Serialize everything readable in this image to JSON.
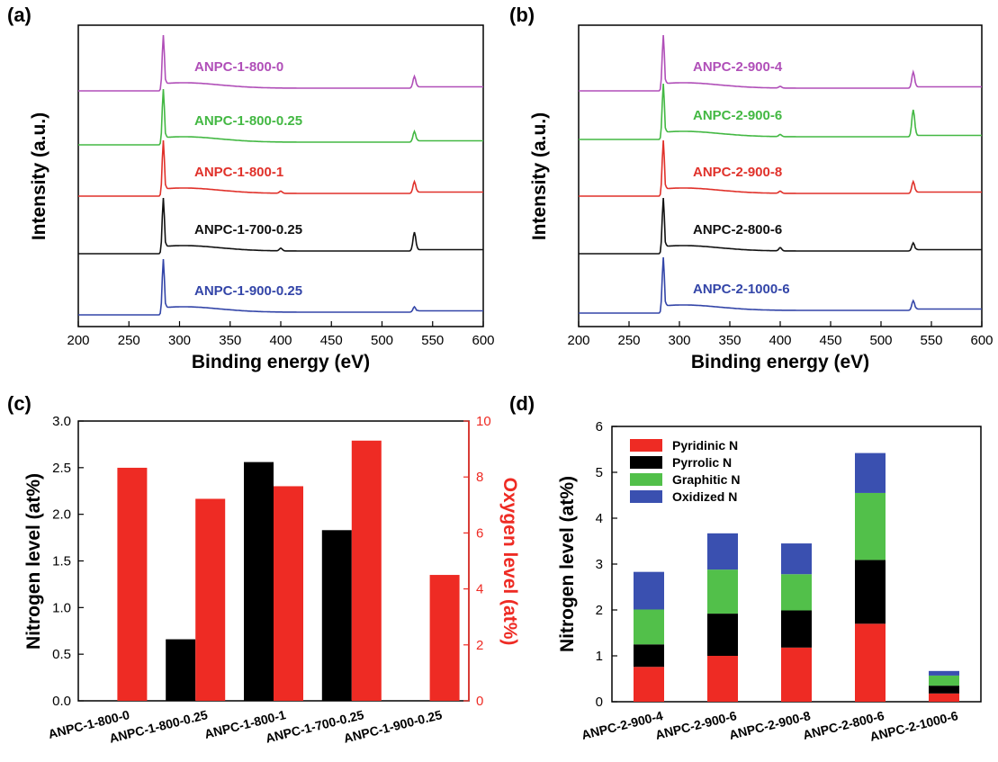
{
  "panels": {
    "a": "(a)",
    "b": "(b)",
    "c": "(c)",
    "d": "(d)"
  },
  "chart_data": [
    {
      "type": "line",
      "panel": "(a)",
      "xlabel": "Binding energy (eV)",
      "ylabel": "Intensity (a.u.)",
      "xlim": [
        200,
        600
      ],
      "xticks": [
        "200",
        "250",
        "300",
        "350",
        "400",
        "450",
        "500",
        "550",
        "600"
      ],
      "yticks": [],
      "series": [
        {
          "name": "ANPC-1-800-0",
          "color": "#b04fb8",
          "c1s_peak_eV": 284,
          "o1s_peak_eV": 532,
          "c1s_height": 1.0,
          "o1s_height": 0.22,
          "n1s_height": 0.0
        },
        {
          "name": "ANPC-1-800-0.25",
          "color": "#43b843",
          "c1s_peak_eV": 284,
          "o1s_peak_eV": 532,
          "c1s_height": 1.0,
          "o1s_height": 0.2,
          "n1s_height": 0.0
        },
        {
          "name": "ANPC-1-800-1",
          "color": "#e0312a",
          "c1s_peak_eV": 284,
          "o1s_peak_eV": 532,
          "c1s_height": 1.0,
          "o1s_height": 0.22,
          "n1s_height": 0.04
        },
        {
          "name": "ANPC-1-700-0.25",
          "color": "#111111",
          "c1s_peak_eV": 284,
          "o1s_peak_eV": 532,
          "c1s_height": 1.0,
          "o1s_height": 0.35,
          "n1s_height": 0.05
        },
        {
          "name": "ANPC-1-900-0.25",
          "color": "#3345a8",
          "c1s_peak_eV": 284,
          "o1s_peak_eV": 532,
          "c1s_height": 1.0,
          "o1s_height": 0.1,
          "n1s_height": 0.0
        }
      ]
    },
    {
      "type": "line",
      "panel": "(b)",
      "xlabel": "Binding energy (eV)",
      "ylabel": "Intensity (a.u.)",
      "xlim": [
        200,
        600
      ],
      "xticks": [
        "200",
        "250",
        "300",
        "350",
        "400",
        "450",
        "500",
        "550",
        "600"
      ],
      "yticks": [],
      "series": [
        {
          "name": "ANPC-2-900-4",
          "color": "#b04fb8",
          "c1s_peak_eV": 284,
          "o1s_peak_eV": 532,
          "c1s_height": 1.0,
          "o1s_height": 0.3,
          "n1s_height": 0.03
        },
        {
          "name": "ANPC-2-900-6",
          "color": "#43b843",
          "c1s_peak_eV": 284,
          "o1s_peak_eV": 532,
          "c1s_height": 1.0,
          "o1s_height": 0.5,
          "n1s_height": 0.04
        },
        {
          "name": "ANPC-2-900-8",
          "color": "#e0312a",
          "c1s_peak_eV": 284,
          "o1s_peak_eV": 532,
          "c1s_height": 1.0,
          "o1s_height": 0.22,
          "n1s_height": 0.04
        },
        {
          "name": "ANPC-2-800-6",
          "color": "#111111",
          "c1s_peak_eV": 284,
          "o1s_peak_eV": 532,
          "c1s_height": 1.0,
          "o1s_height": 0.15,
          "n1s_height": 0.06
        },
        {
          "name": "ANPC-2-1000-6",
          "color": "#3345a8",
          "c1s_peak_eV": 284,
          "o1s_peak_eV": 532,
          "c1s_height": 1.0,
          "o1s_height": 0.18,
          "n1s_height": 0.0
        }
      ]
    },
    {
      "type": "bar",
      "panel": "(c)",
      "categories": [
        "ANPC-1-800-0",
        "ANPC-1-800-0.25",
        "ANPC-1-800-1",
        "ANPC-1-700-0.25",
        "ANPC-1-900-0.25"
      ],
      "series": [
        {
          "name": "",
          "color": "#000000",
          "axis": "left",
          "values": [
            0,
            0.66,
            2.56,
            1.83,
            0
          ]
        },
        {
          "name": "",
          "color": "#ee2b24",
          "axis": "right",
          "values": [
            8.33,
            7.22,
            7.67,
            9.3,
            4.5
          ]
        }
      ],
      "ylabel": "Nitrogen level (at%)",
      "ylabel_right": "Oxygen level (at%)",
      "ylim": [
        0,
        3.0
      ],
      "ylim_right": [
        0,
        10
      ],
      "yticks": [
        "0.0",
        "0.5",
        "1.0",
        "1.5",
        "2.0",
        "2.5",
        "3.0"
      ],
      "yticks_right": [
        "0",
        "2",
        "4",
        "6",
        "8",
        "10"
      ],
      "right_axis_color": "#ee2b24"
    },
    {
      "type": "bar",
      "stacked": true,
      "panel": "(d)",
      "categories": [
        "ANPC-2-900-4",
        "ANPC-2-900-6",
        "ANPC-2-900-8",
        "ANPC-2-800-6",
        "ANPC-2-1000-6"
      ],
      "series": [
        {
          "name": "Pyridinic N",
          "color": "#ee2b24",
          "values": [
            0.76,
            1.0,
            1.18,
            1.7,
            0.18
          ]
        },
        {
          "name": "Pyrrolic N",
          "color": "#000000",
          "values": [
            0.49,
            0.92,
            0.81,
            1.39,
            0.17
          ]
        },
        {
          "name": "Graphitic N",
          "color": "#52c04a",
          "values": [
            0.76,
            0.96,
            0.79,
            1.46,
            0.22
          ]
        },
        {
          "name": "Oxidized N",
          "color": "#3a50b0",
          "values": [
            0.82,
            0.79,
            0.67,
            0.87,
            0.1
          ]
        }
      ],
      "ylabel": "Nitrogen level (at%)",
      "ylim": [
        0,
        6
      ],
      "yticks": [
        "0",
        "1",
        "2",
        "3",
        "4",
        "5",
        "6"
      ],
      "legend_position": "top-left"
    }
  ]
}
